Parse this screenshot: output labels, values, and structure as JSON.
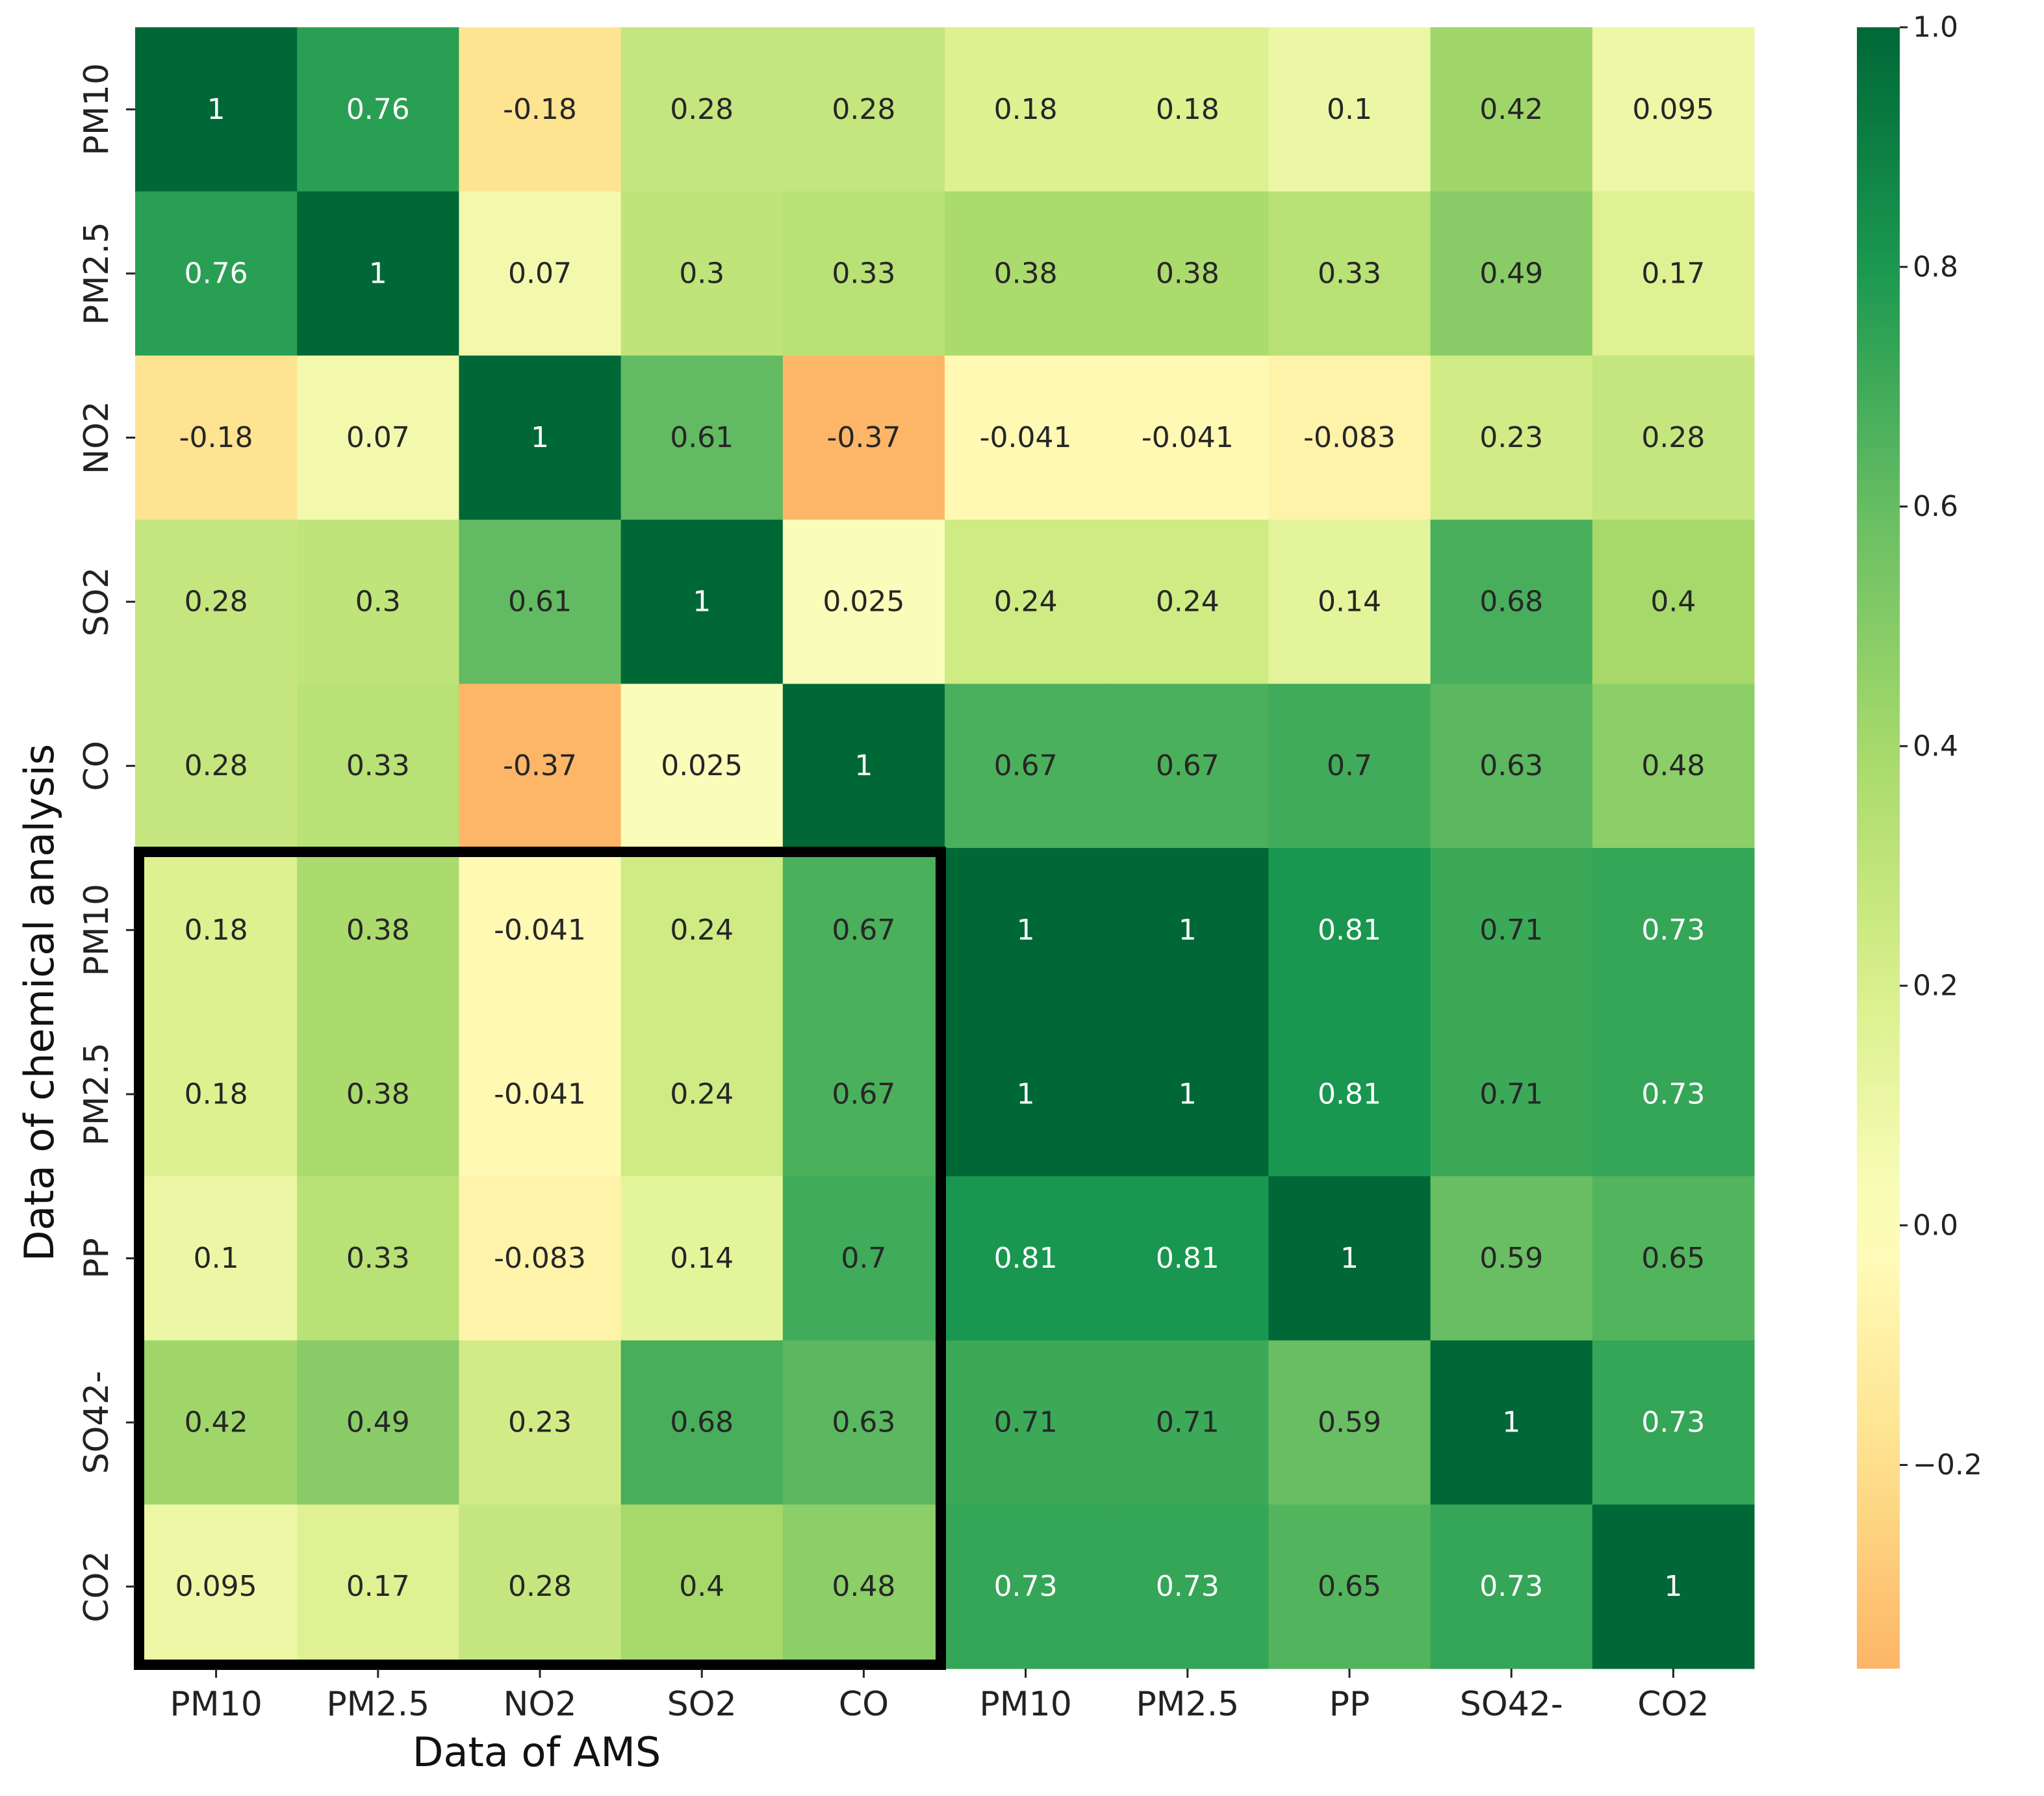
{
  "chart_data": {
    "type": "heatmap",
    "title": "",
    "xlabel": "Data of AMS",
    "ylabel": "Data of chemical analysis",
    "x_categories": [
      "PM10",
      "PM2.5",
      "NO2",
      "SO2",
      "CO",
      "PM10",
      "PM2.5",
      "PP",
      "SO42-",
      "CO2"
    ],
    "y_categories": [
      "PM10",
      "PM2.5",
      "NO2",
      "SO2",
      "CO",
      "PM10",
      "PM2.5",
      "PP",
      "SO42-",
      "CO2"
    ],
    "values": [
      [
        1,
        0.76,
        -0.18,
        0.28,
        0.28,
        0.18,
        0.18,
        0.1,
        0.42,
        0.095
      ],
      [
        0.76,
        1,
        0.07,
        0.3,
        0.33,
        0.38,
        0.38,
        0.33,
        0.49,
        0.17
      ],
      [
        -0.18,
        0.07,
        1,
        0.61,
        -0.37,
        -0.041,
        -0.041,
        -0.083,
        0.23,
        0.28
      ],
      [
        0.28,
        0.3,
        0.61,
        1,
        0.025,
        0.24,
        0.24,
        0.14,
        0.68,
        0.4
      ],
      [
        0.28,
        0.33,
        -0.37,
        0.025,
        1,
        0.67,
        0.67,
        0.7,
        0.63,
        0.48
      ],
      [
        0.18,
        0.38,
        -0.041,
        0.24,
        0.67,
        1,
        1,
        0.81,
        0.71,
        0.73
      ],
      [
        0.18,
        0.38,
        -0.041,
        0.24,
        0.67,
        1,
        1,
        0.81,
        0.71,
        0.73
      ],
      [
        0.1,
        0.33,
        -0.083,
        0.14,
        0.7,
        0.81,
        0.81,
        1,
        0.59,
        0.65
      ],
      [
        0.42,
        0.49,
        0.23,
        0.68,
        0.63,
        0.71,
        0.71,
        0.59,
        1,
        0.73
      ],
      [
        0.095,
        0.17,
        0.28,
        0.4,
        0.48,
        0.73,
        0.73,
        0.65,
        0.73,
        1
      ]
    ],
    "labels": [
      [
        "1",
        "0.76",
        "-0.18",
        "0.28",
        "0.28",
        "0.18",
        "0.18",
        "0.1",
        "0.42",
        "0.095"
      ],
      [
        "0.76",
        "1",
        "0.07",
        "0.3",
        "0.33",
        "0.38",
        "0.38",
        "0.33",
        "0.49",
        "0.17"
      ],
      [
        "-0.18",
        "0.07",
        "1",
        "0.61",
        "-0.37",
        "-0.041",
        "-0.041",
        "-0.083",
        "0.23",
        "0.28"
      ],
      [
        "0.28",
        "0.3",
        "0.61",
        "1",
        "0.025",
        "0.24",
        "0.24",
        "0.14",
        "0.68",
        "0.4"
      ],
      [
        "0.28",
        "0.33",
        "-0.37",
        "0.025",
        "1",
        "0.67",
        "0.67",
        "0.7",
        "0.63",
        "0.48"
      ],
      [
        "0.18",
        "0.38",
        "-0.041",
        "0.24",
        "0.67",
        "1",
        "1",
        "0.81",
        "0.71",
        "0.73"
      ],
      [
        "0.18",
        "0.38",
        "-0.041",
        "0.24",
        "0.67",
        "1",
        "1",
        "0.81",
        "0.71",
        "0.73"
      ],
      [
        "0.1",
        "0.33",
        "-0.083",
        "0.14",
        "0.7",
        "0.81",
        "0.81",
        "1",
        "0.59",
        "0.65"
      ],
      [
        "0.42",
        "0.49",
        "0.23",
        "0.68",
        "0.63",
        "0.71",
        "0.71",
        "0.59",
        "1",
        "0.73"
      ],
      [
        "0.095",
        "0.17",
        "0.28",
        "0.4",
        "0.48",
        "0.73",
        "0.73",
        "0.65",
        "0.73",
        "1"
      ]
    ],
    "colormap": "RdYlGn",
    "vmin": -0.37,
    "vmax": 1,
    "colorbar": {
      "ticks": [
        1.0,
        0.8,
        0.6,
        0.4,
        0.2,
        0.0,
        -0.2
      ],
      "tick_labels": [
        "1.0",
        "0.8",
        "0.6",
        "0.4",
        "0.2",
        "0.0",
        "−0.2"
      ]
    },
    "highlight_box": {
      "rows": [
        5,
        9
      ],
      "cols": [
        0,
        4
      ],
      "color": "#000000"
    }
  }
}
